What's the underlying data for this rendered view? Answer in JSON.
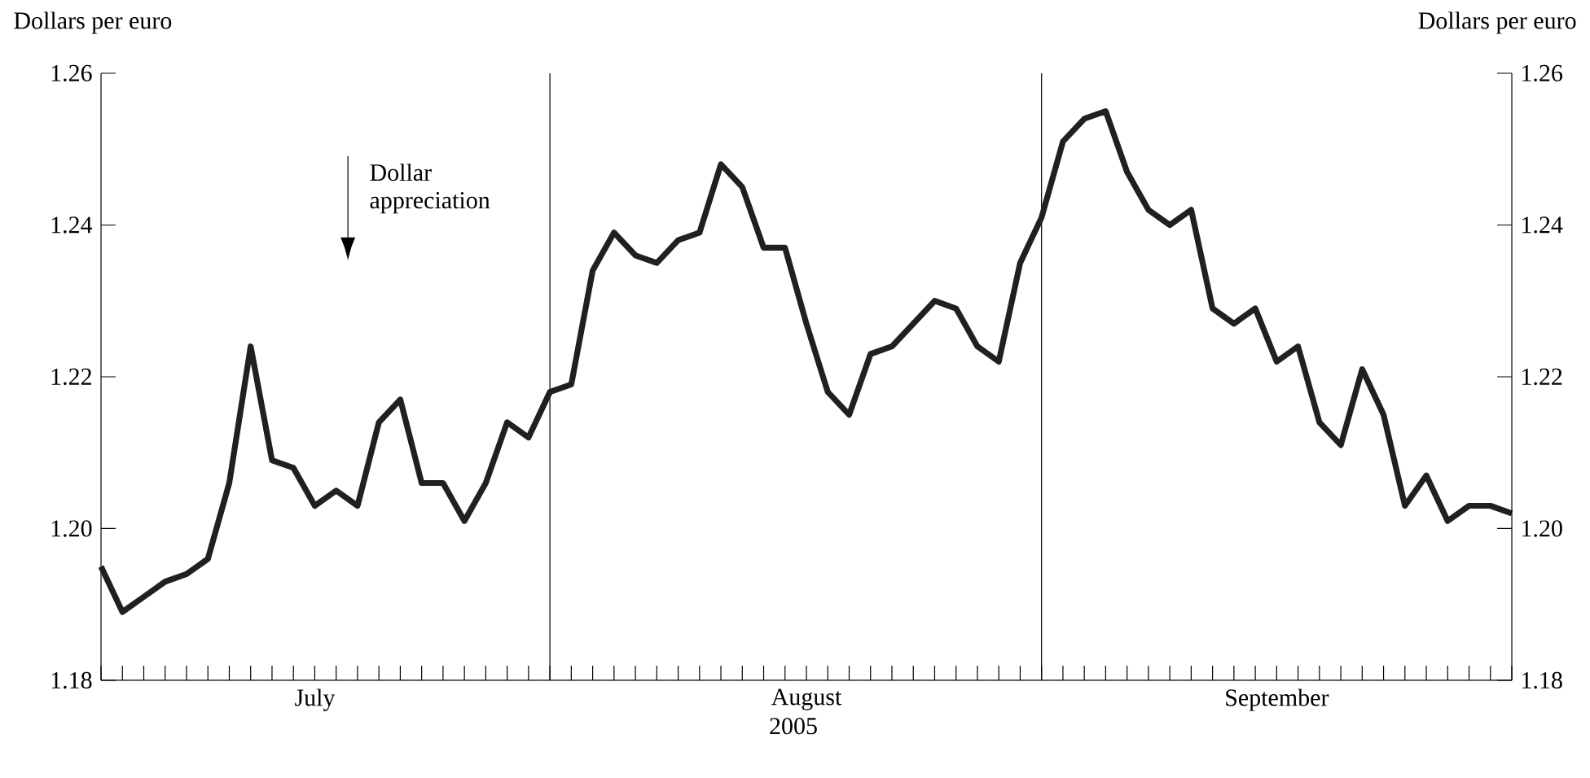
{
  "chart_data": {
    "type": "line",
    "ylabel": "Dollars per euro",
    "y2label": "Dollars per euro",
    "xlabel": "2005",
    "annotations": [
      "Dollar appreciation"
    ],
    "categories": [
      null,
      null,
      null,
      null,
      null,
      null,
      null,
      null,
      null,
      null,
      "July",
      null,
      null,
      null,
      null,
      null,
      null,
      null,
      null,
      null,
      null,
      null,
      null,
      null,
      null,
      null,
      null,
      null,
      null,
      null,
      null,
      null,
      null,
      "August",
      null,
      null,
      null,
      null,
      null,
      null,
      null,
      null,
      null,
      null,
      null,
      null,
      null,
      null,
      null,
      null,
      null,
      null,
      null,
      null,
      null,
      "September",
      null,
      null,
      null,
      null,
      null,
      null,
      null,
      null,
      null,
      null,
      null
    ],
    "series": [
      {
        "color": "#231f20",
        "values": [
          1.195,
          1.189,
          1.191,
          1.193,
          1.194,
          1.196,
          1.206,
          1.224,
          1.209,
          1.208,
          1.203,
          1.205,
          1.203,
          1.214,
          1.217,
          1.206,
          1.206,
          1.201,
          1.206,
          1.214,
          1.212,
          1.218,
          1.219,
          1.234,
          1.239,
          1.236,
          1.235,
          1.238,
          1.239,
          1.248,
          1.245,
          1.237,
          1.237,
          1.227,
          1.218,
          1.215,
          1.223,
          1.224,
          1.227,
          1.23,
          1.229,
          1.224,
          1.222,
          1.235,
          1.241,
          1.251,
          1.254,
          1.255,
          1.247,
          1.242,
          1.24,
          1.242,
          1.229,
          1.227,
          1.229,
          1.222,
          1.224,
          1.214,
          1.211,
          1.221,
          1.215,
          1.203,
          1.207,
          1.201,
          1.203,
          1.203,
          1.202
        ]
      }
    ],
    "ylim": [
      1.18,
      1.26
    ],
    "yticks": [
      1.18,
      {
        "value": 1.2,
        "label": "1.20"
      },
      1.22,
      1.24,
      1.26
    ],
    "y2lim": [
      1.18,
      1.26
    ],
    "y2ticks": [
      1.18,
      {
        "value": 1.2,
        "label": "1.20"
      },
      1.22,
      1.24,
      1.26
    ],
    "marker": "none",
    "line_style": "solid"
  }
}
